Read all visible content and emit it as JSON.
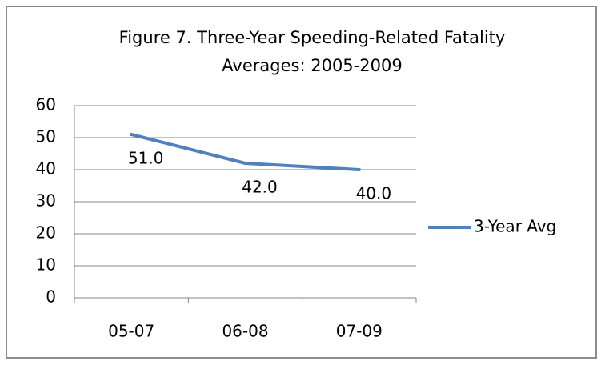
{
  "chart_data": {
    "type": "line",
    "title": "Figure 7.  Three-Year Speeding-Related Fatality Averages: 2005-2009",
    "categories": [
      "05-07",
      "06-08",
      "07-09"
    ],
    "series": [
      {
        "name": "3-Year Avg",
        "color": "#4f81bd",
        "values": [
          51,
          42,
          40
        ],
        "value_labels": [
          "51.0",
          "42.0",
          "40.0"
        ]
      }
    ],
    "ylim": [
      0,
      60
    ],
    "yticks": [
      0,
      10,
      20,
      30,
      40,
      50,
      60
    ],
    "grid": true,
    "legend": "right"
  }
}
